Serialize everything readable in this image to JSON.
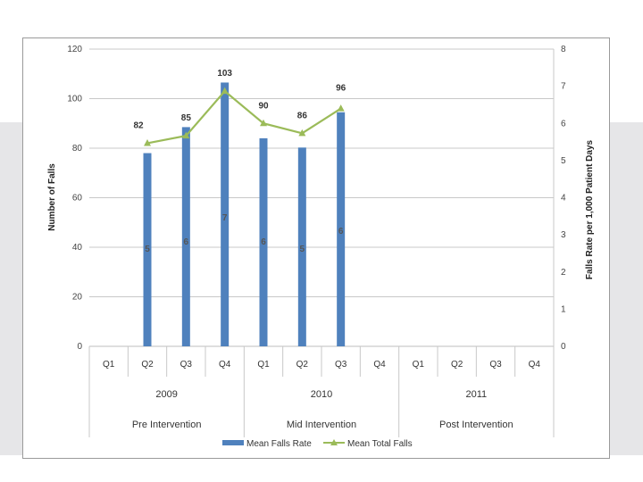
{
  "chart_data": {
    "type": "bar+line",
    "y_left": {
      "label": "Number of Falls",
      "range": [
        0,
        120
      ],
      "ticks": [
        0,
        20,
        40,
        60,
        80,
        100,
        120
      ]
    },
    "y_right": {
      "label": "Falls Rate per 1,000 Patient Days",
      "range": [
        0,
        8
      ],
      "ticks": [
        0,
        1,
        2,
        3,
        4,
        5,
        6,
        7,
        8
      ]
    },
    "categories": [
      "Q1",
      "Q2",
      "Q3",
      "Q4",
      "Q1",
      "Q2",
      "Q3",
      "Q4",
      "Q1",
      "Q2",
      "Q3",
      "Q4"
    ],
    "years": [
      {
        "label": "2009",
        "from": 0,
        "to": 3
      },
      {
        "label": "2010",
        "from": 4,
        "to": 7
      },
      {
        "label": "2011",
        "from": 8,
        "to": 11
      }
    ],
    "phases": [
      {
        "label": "Pre Intervention",
        "from": 0,
        "to": 3
      },
      {
        "label": "Mid Intervention",
        "from": 4,
        "to": 7
      },
      {
        "label": "Post  Intervention",
        "from": 8,
        "to": 11
      }
    ],
    "series": [
      {
        "name": "Mean Falls Rate",
        "kind": "bar",
        "axis": "right",
        "color": "#4f81bd",
        "values": [
          null,
          5.2,
          5.9,
          7.1,
          5.6,
          5.35,
          6.3,
          null,
          null,
          null,
          null,
          null
        ],
        "labels": [
          null,
          "5",
          "6",
          "7",
          "6",
          "5",
          "6",
          null,
          null,
          null,
          null,
          null
        ]
      },
      {
        "name": "Mean Total Falls",
        "kind": "line",
        "axis": "left",
        "color": "#9bbb59",
        "values": [
          null,
          82,
          85,
          103,
          90,
          86,
          96,
          null,
          null,
          null,
          null,
          null
        ],
        "labels": [
          null,
          "82",
          "85",
          "103",
          "90",
          "86",
          "96",
          null,
          null,
          null,
          null,
          null
        ]
      }
    ],
    "grid": true,
    "legend": "bottom"
  }
}
